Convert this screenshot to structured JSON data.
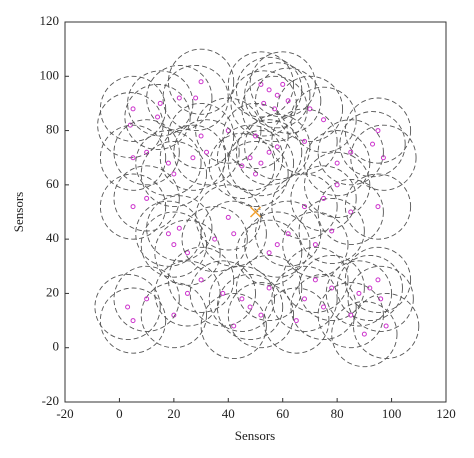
{
  "chart_data": {
    "type": "scatter",
    "xlabel": "Sensors",
    "ylabel": "Sensors",
    "xlim": [
      -20,
      120
    ],
    "ylim": [
      -20,
      120
    ],
    "xticks": [
      -20,
      0,
      20,
      40,
      60,
      80,
      100,
      120
    ],
    "yticks": [
      -20,
      0,
      20,
      40,
      60,
      80,
      100,
      120
    ],
    "series": [
      {
        "color": "#cc33cc",
        "marker": "o",
        "radius": 12,
        "x": [
          52,
          55,
          58,
          60,
          53,
          57,
          62,
          30,
          28,
          5,
          4,
          15,
          14,
          22,
          40,
          30,
          32,
          27,
          5,
          10,
          18,
          20,
          48,
          52,
          55,
          50,
          45,
          58,
          50,
          70,
          75,
          68,
          95,
          93,
          97,
          85,
          80,
          85,
          75,
          80,
          68,
          95,
          62,
          58,
          55,
          72,
          78,
          40,
          42,
          35,
          20,
          22,
          18,
          25,
          5,
          10,
          30,
          25,
          20,
          10,
          5,
          3,
          45,
          48,
          52,
          42,
          38,
          55,
          65,
          68,
          72,
          78,
          75,
          88,
          92,
          96,
          98,
          90,
          85,
          95
        ],
        "y": [
          97,
          95,
          93,
          97,
          90,
          88,
          91,
          98,
          92,
          88,
          82,
          90,
          85,
          92,
          80,
          78,
          72,
          70,
          70,
          72,
          68,
          64,
          70,
          68,
          72,
          64,
          67,
          74,
          78,
          88,
          84,
          76,
          80,
          75,
          70,
          72,
          68,
          50,
          55,
          60,
          52,
          52,
          42,
          38,
          35,
          38,
          43,
          48,
          42,
          40,
          38,
          44,
          42,
          35,
          52,
          55,
          25,
          20,
          12,
          18,
          10,
          15,
          18,
          15,
          12,
          8,
          20,
          22,
          10,
          18,
          25,
          22,
          15,
          20,
          22,
          18,
          8,
          5,
          12,
          25
        ]
      },
      {
        "color": "#f0a030",
        "marker": "x",
        "x": [
          50
        ],
        "y": [
          50
        ]
      }
    ]
  }
}
